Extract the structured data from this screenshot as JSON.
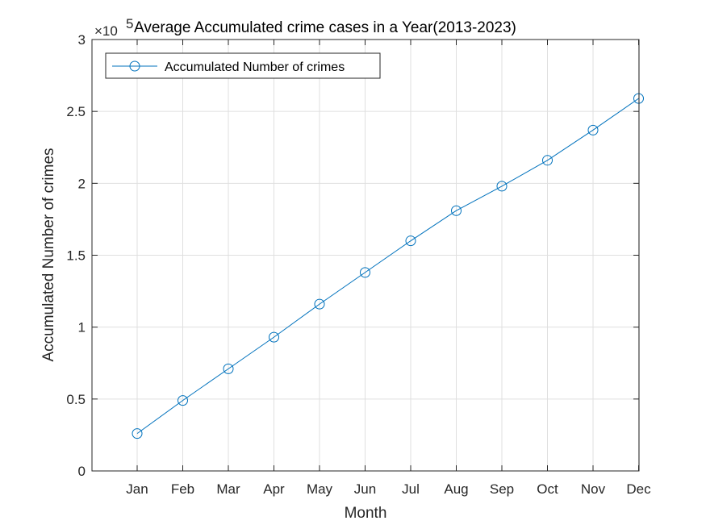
{
  "chart_data": {
    "type": "line",
    "title": "Average Accumulated crime cases in a Year(2013-2023)",
    "xlabel": "Month",
    "ylabel": "Accumulated Number of crimes",
    "exponent_base": "×10",
    "exponent_power": "5",
    "categories": [
      "Jan",
      "Feb",
      "Mar",
      "Apr",
      "May",
      "Jun",
      "Jul",
      "Aug",
      "Sep",
      "Oct",
      "Nov",
      "Dec"
    ],
    "series": [
      {
        "name": "Accumulated Number of crimes",
        "values": [
          26000,
          49000,
          71000,
          93000,
          116000,
          138000,
          160000,
          181000,
          198000,
          216000,
          237000,
          259000
        ],
        "color": "#0072BD",
        "marker": "circle"
      }
    ],
    "ylim": [
      0,
      300000
    ],
    "yticks": [
      0,
      50000,
      100000,
      150000,
      200000,
      250000,
      300000
    ],
    "ytick_labels": [
      "0",
      "0.5",
      "1",
      "1.5",
      "2",
      "2.5",
      "3"
    ],
    "grid": true,
    "legend_position": "top-left"
  }
}
